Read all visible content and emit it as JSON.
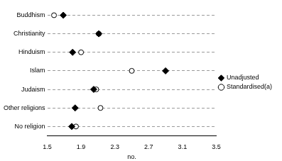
{
  "chart_data": {
    "type": "scatter",
    "orientation": "horizontal",
    "x_label": "no.",
    "categories": [
      "Buddhism",
      "Christianity",
      "Hinduism",
      "Islam",
      "Judaism",
      "Other religions",
      "No religion"
    ],
    "series": [
      {
        "name": "Unadjusted",
        "color": "#000000",
        "marker": "diamond",
        "values": [
          1.69,
          2.11,
          1.8,
          2.9,
          2.05,
          1.83,
          1.79
        ]
      },
      {
        "name": "Standardised(a)",
        "color": "#000000",
        "marker": "circle",
        "values": [
          1.58,
          2.11,
          1.9,
          2.5,
          2.08,
          2.13,
          1.84
        ]
      }
    ],
    "xlim": [
      1.5,
      3.5
    ],
    "xticks": [
      1.5,
      1.9,
      2.3,
      2.7,
      3.1,
      3.5
    ],
    "grid": true,
    "legend": "right"
  }
}
